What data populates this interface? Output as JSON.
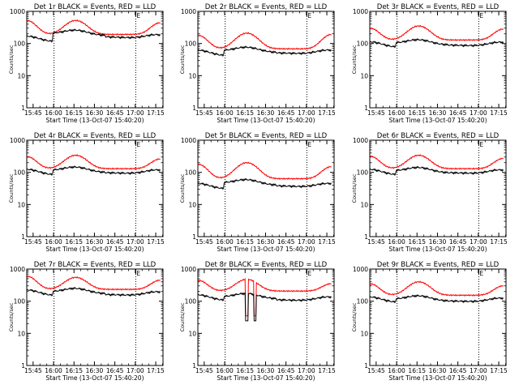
{
  "figure": {
    "colors": {
      "events": "#000000",
      "lld": "#ff0000",
      "axes": "#000000",
      "background": "#ffffff"
    },
    "x_axis_label": "Start Time (13-Oct-07 15:40:20)",
    "y_axis_label": "Counts/sec",
    "x_tick_labels": [
      "15:45",
      "16:00",
      "16:15",
      "16:30",
      "16:45",
      "17:00",
      "17:15"
    ],
    "y_tick_labels": [
      "1",
      "10",
      "100",
      "1000"
    ],
    "marker_label": "E"
  },
  "chart_data": [
    {
      "type": "line",
      "title": "Det 1r BLACK = Events, RED = LLD",
      "xlabel": "Start Time (13-Oct-07 15:40:20)",
      "ylabel": "Counts/sec",
      "y_scale": "log",
      "ylim": [
        1,
        1000
      ],
      "x_ticks_min": [
        4.67,
        19.67,
        34.67,
        49.67,
        64.67,
        79.67,
        94.67
      ],
      "xlim": [
        0,
        100
      ],
      "dotted_lines_min": [
        20,
        80
      ],
      "marker_min": 80,
      "events": {
        "top": [
          150,
          240,
          190
        ],
        "bottom": [
          110,
          160,
          120
        ]
      },
      "lld": {
        "peaks": [
          520,
          520,
          440
        ],
        "troughs": [
          200,
          190,
          185
        ]
      }
    },
    {
      "type": "line",
      "title": "Det 2r BLACK = Events, RED = LLD",
      "xlabel": "Start Time (13-Oct-07 15:40:20)",
      "ylabel": "Counts/sec",
      "y_scale": "log",
      "ylim": [
        1,
        1000
      ],
      "x_ticks_min": [
        4.67,
        19.67,
        34.67,
        49.67,
        64.67,
        79.67,
        94.67
      ],
      "xlim": [
        0,
        100
      ],
      "dotted_lines_min": [
        20,
        80
      ],
      "marker_min": 80,
      "events": {
        "top": [
          55,
          70,
          60
        ],
        "bottom": [
          40,
          50,
          45
        ]
      },
      "lld": {
        "peaks": [
          180,
          210,
          190
        ],
        "troughs": [
          70,
          65,
          70
        ]
      }
    },
    {
      "type": "line",
      "title": "Det 3r BLACK = Events, RED = LLD",
      "xlabel": "Start Time (13-Oct-07 15:40:20)",
      "ylabel": "Counts/sec",
      "y_scale": "log",
      "ylim": [
        1,
        1000
      ],
      "x_ticks_min": [
        4.67,
        19.67,
        34.67,
        49.67,
        64.67,
        79.67,
        94.67
      ],
      "xlim": [
        0,
        100
      ],
      "dotted_lines_min": [
        20,
        80
      ],
      "marker_min": 80,
      "events": {
        "top": [
          100,
          120,
          105
        ],
        "bottom": [
          75,
          85,
          80
        ]
      },
      "lld": {
        "peaks": [
          300,
          350,
          280
        ],
        "troughs": [
          130,
          125,
          130
        ]
      }
    },
    {
      "type": "line",
      "title": "Det 4r BLACK = Events, RED = LLD",
      "xlabel": "Start Time (13-Oct-07 15:40:20)",
      "ylabel": "Counts/sec",
      "y_scale": "log",
      "ylim": [
        1,
        1000
      ],
      "x_ticks_min": [
        4.67,
        19.67,
        34.67,
        49.67,
        64.67,
        79.67,
        94.67
      ],
      "xlim": [
        0,
        100
      ],
      "dotted_lines_min": [
        20,
        80
      ],
      "marker_min": 80,
      "events": {
        "top": [
          110,
          135,
          115
        ],
        "bottom": [
          80,
          90,
          85
        ]
      },
      "lld": {
        "peaks": [
          310,
          340,
          260
        ],
        "troughs": [
          130,
          125,
          135
        ]
      }
    },
    {
      "type": "line",
      "title": "Det 5r BLACK = Events, RED = LLD",
      "xlabel": "Start Time (13-Oct-07 15:40:20)",
      "ylabel": "Counts/sec",
      "y_scale": "log",
      "ylim": [
        1,
        1000
      ],
      "x_ticks_min": [
        4.67,
        19.67,
        34.67,
        49.67,
        64.67,
        79.67,
        94.67
      ],
      "xlim": [
        0,
        100
      ],
      "dotted_lines_min": [
        20,
        80
      ],
      "marker_min": 80,
      "events": {
        "top": [
          40,
          55,
          45
        ],
        "bottom": [
          30,
          35,
          30
        ]
      },
      "lld": {
        "peaks": [
          180,
          200,
          150
        ],
        "troughs": [
          65,
          60,
          65
        ]
      }
    },
    {
      "type": "line",
      "title": "Det 6r BLACK = Events, RED = LLD",
      "xlabel": "Start Time (13-Oct-07 15:40:20)",
      "ylabel": "Counts/sec",
      "y_scale": "log",
      "ylim": [
        1,
        1000
      ],
      "x_ticks_min": [
        4.67,
        19.67,
        34.67,
        49.67,
        64.67,
        79.67,
        94.67
      ],
      "xlim": [
        0,
        100
      ],
      "dotted_lines_min": [
        20,
        80
      ],
      "marker_min": 80,
      "events": {
        "top": [
          110,
          130,
          115
        ],
        "bottom": [
          80,
          90,
          85
        ]
      },
      "lld": {
        "peaks": [
          320,
          340,
          270
        ],
        "troughs": [
          130,
          125,
          135
        ]
      }
    },
    {
      "type": "line",
      "title": "Det 7r BLACK = Events, RED = LLD",
      "xlabel": "Start Time (13-Oct-07 15:40:20)",
      "ylabel": "Counts/sec",
      "y_scale": "log",
      "ylim": [
        1,
        1000
      ],
      "x_ticks_min": [
        4.67,
        19.67,
        34.67,
        49.67,
        64.67,
        79.67,
        94.67
      ],
      "xlim": [
        0,
        100
      ],
      "dotted_lines_min": [
        20,
        80
      ],
      "marker_min": 80,
      "events": {
        "top": [
          200,
          230,
          190
        ],
        "bottom": [
          140,
          160,
          140
        ]
      },
      "lld": {
        "peaks": [
          600,
          550,
          450
        ],
        "troughs": [
          240,
          230,
          230
        ]
      }
    },
    {
      "type": "line",
      "title": "Det 8r BLACK = Events, RED = LLD",
      "xlabel": "Start Time (13-Oct-07 15:40:20)",
      "ylabel": "Counts/sec",
      "y_scale": "log",
      "ylim": [
        1,
        1000
      ],
      "x_ticks_min": [
        4.67,
        19.67,
        34.67,
        49.67,
        64.67,
        79.67,
        94.67
      ],
      "xlim": [
        0,
        100
      ],
      "dotted_lines_min": [
        20,
        80
      ],
      "marker_min": 80,
      "events": {
        "top": [
          140,
          160,
          130
        ],
        "bottom": [
          100,
          110,
          100
        ]
      },
      "lld": {
        "peaks": [
          450,
          480,
          350
        ],
        "troughs": [
          210,
          200,
          210
        ]
      },
      "dropout_min": [
        35,
        45
      ],
      "dropout_level": 35
    },
    {
      "type": "line",
      "title": "Det 9r BLACK = Events, RED = LLD",
      "xlabel": "Start Time (13-Oct-07 15:40:20)",
      "ylabel": "Counts/sec",
      "y_scale": "log",
      "ylim": [
        1,
        1000
      ],
      "x_ticks_min": [
        4.67,
        19.67,
        34.67,
        49.67,
        64.67,
        79.67,
        94.67
      ],
      "xlim": [
        0,
        100
      ],
      "dotted_lines_min": [
        20,
        80
      ],
      "marker_min": 80,
      "events": {
        "top": [
          120,
          135,
          120
        ],
        "bottom": [
          90,
          95,
          90
        ]
      },
      "lld": {
        "peaks": [
          350,
          400,
          300
        ],
        "troughs": [
          160,
          150,
          150
        ]
      }
    }
  ]
}
